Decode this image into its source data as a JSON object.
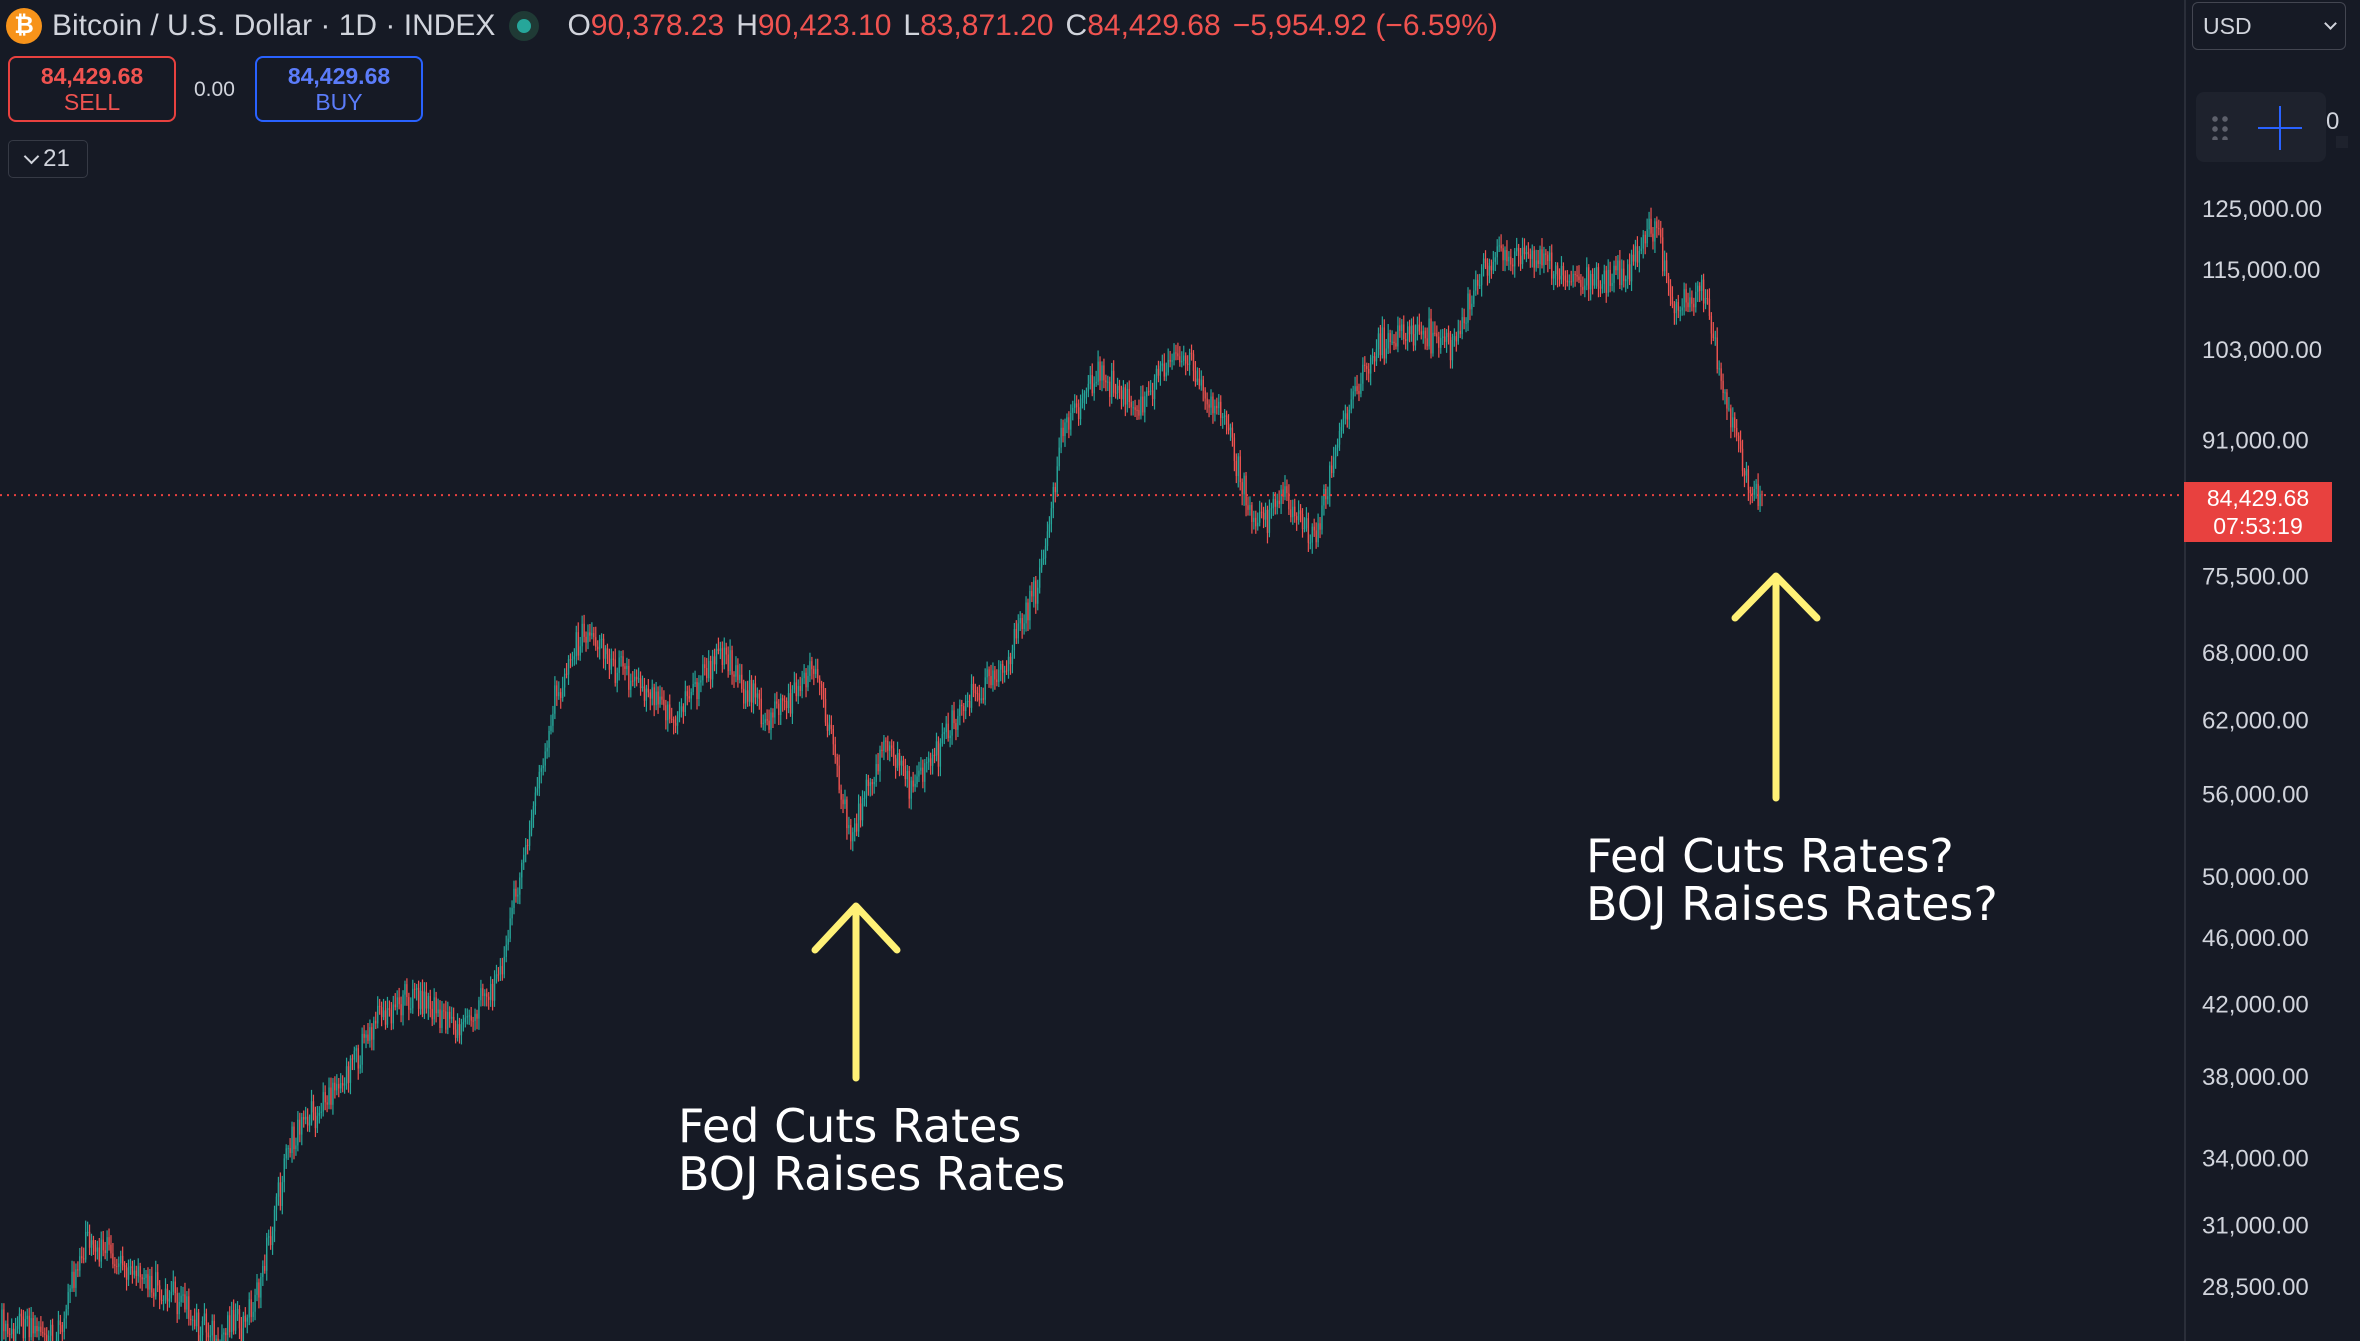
{
  "header": {
    "coin_icon_letter": "₿",
    "title": "Bitcoin / U.S. Dollar · 1D · INDEX",
    "ohlc": [
      {
        "key": "O",
        "value": "90,378.23"
      },
      {
        "key": "H",
        "value": "90,423.10"
      },
      {
        "key": "L",
        "value": "83,871.20"
      },
      {
        "key": "C",
        "value": "84,429.68"
      }
    ],
    "change": "−5,954.92 (−6.59%)"
  },
  "trade": {
    "sell_price": "84,429.68",
    "sell_label": "SELL",
    "spread": "0.00",
    "buy_price": "84,429.68",
    "buy_label": "BUY"
  },
  "indicators_count": "21",
  "currency": "USD",
  "toolbar_edge_text": "0",
  "price_tag": {
    "price": "84,429.68",
    "countdown": "07:53:19"
  },
  "colors": {
    "up": "#26a69a",
    "down": "#ef5350",
    "annotation_arrow": "#fff176",
    "price_line": "#e8413f"
  },
  "icons": [
    "bitcoin-icon",
    "chevron-down-icon",
    "drag-handle-icon",
    "crosshair-icon"
  ],
  "chart_data": {
    "type": "candlestick",
    "scale": "log",
    "timeframe": "1D",
    "y_ticks": [
      125000,
      115000,
      103000,
      91000,
      75500,
      68000,
      62000,
      56000,
      50000,
      46000,
      42000,
      38000,
      34000,
      31000,
      28500
    ],
    "y_tick_labels": [
      "125,000.00",
      "115,000.00",
      "103,000.00",
      "91,000.00",
      "75,500.00",
      "68,000.00",
      "62,000.00",
      "56,000.00",
      "50,000.00",
      "46,000.00",
      "42,000.00",
      "38,000.00",
      "34,000.00",
      "31,000.00",
      "28,500.00"
    ],
    "last_price": 84429.68,
    "close_path": [
      {
        "i": 0,
        "v": 27000
      },
      {
        "i": 30,
        "v": 26800
      },
      {
        "i": 45,
        "v": 30500
      },
      {
        "i": 60,
        "v": 29800
      },
      {
        "i": 90,
        "v": 28000
      },
      {
        "i": 110,
        "v": 26500
      },
      {
        "i": 130,
        "v": 27500
      },
      {
        "i": 150,
        "v": 35000
      },
      {
        "i": 175,
        "v": 37500
      },
      {
        "i": 195,
        "v": 41500
      },
      {
        "i": 215,
        "v": 42500
      },
      {
        "i": 235,
        "v": 40500
      },
      {
        "i": 255,
        "v": 43000
      },
      {
        "i": 270,
        "v": 52000
      },
      {
        "i": 285,
        "v": 64000
      },
      {
        "i": 300,
        "v": 70000
      },
      {
        "i": 320,
        "v": 66000
      },
      {
        "i": 345,
        "v": 62000
      },
      {
        "i": 370,
        "v": 68000
      },
      {
        "i": 395,
        "v": 62000
      },
      {
        "i": 420,
        "v": 66500
      },
      {
        "i": 437,
        "v": 52500
      },
      {
        "i": 455,
        "v": 60000
      },
      {
        "i": 470,
        "v": 56500
      },
      {
        "i": 495,
        "v": 63000
      },
      {
        "i": 515,
        "v": 66500
      },
      {
        "i": 535,
        "v": 76000
      },
      {
        "i": 545,
        "v": 92000
      },
      {
        "i": 565,
        "v": 100000
      },
      {
        "i": 585,
        "v": 95000
      },
      {
        "i": 605,
        "v": 103000
      },
      {
        "i": 625,
        "v": 96000
      },
      {
        "i": 645,
        "v": 81000
      },
      {
        "i": 660,
        "v": 84000
      },
      {
        "i": 675,
        "v": 79000
      },
      {
        "i": 690,
        "v": 94000
      },
      {
        "i": 710,
        "v": 104000
      },
      {
        "i": 730,
        "v": 106000
      },
      {
        "i": 745,
        "v": 103000
      },
      {
        "i": 765,
        "v": 117000
      },
      {
        "i": 785,
        "v": 118000
      },
      {
        "i": 810,
        "v": 113000
      },
      {
        "i": 835,
        "v": 115000
      },
      {
        "i": 850,
        "v": 123000
      },
      {
        "i": 860,
        "v": 109000
      },
      {
        "i": 875,
        "v": 112000
      },
      {
        "i": 888,
        "v": 95000
      },
      {
        "i": 898,
        "v": 86000
      },
      {
        "i": 905,
        "v": 84430
      }
    ]
  },
  "annotations": [
    {
      "line1": "Fed Cuts Rates",
      "line2": "BOJ Raises Rates"
    },
    {
      "line1": "Fed Cuts Rates?",
      "line2": "BOJ Raises Rates?"
    }
  ]
}
